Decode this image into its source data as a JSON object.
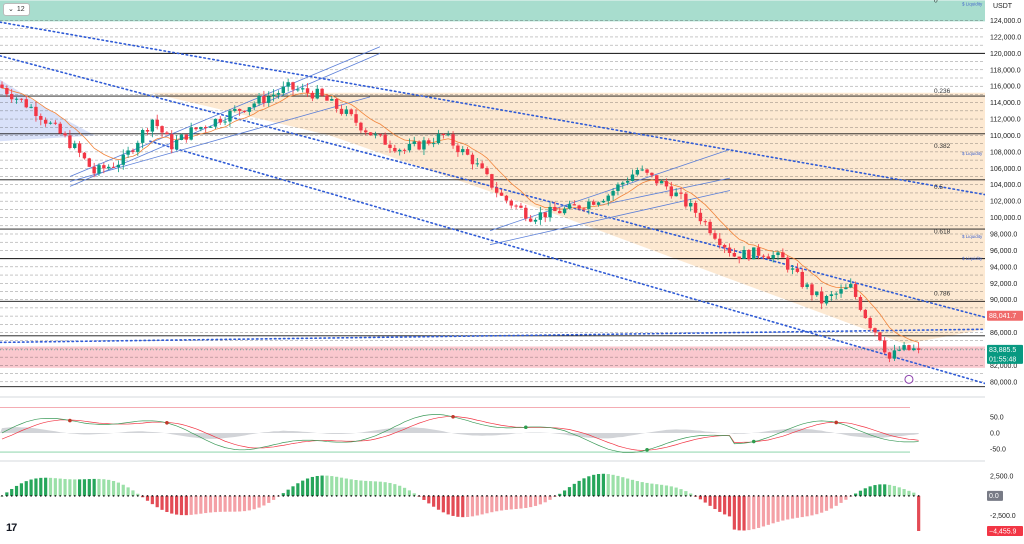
{
  "toolbar": {
    "interval_label": "12",
    "chevron_icon": "chevron-down-icon"
  },
  "axis_currency": "USDT",
  "price_axis": {
    "ticks": [
      "124,000.0",
      "122,000.0",
      "120,000.0",
      "118,000.0",
      "116,000.0",
      "114,000.0",
      "112,000.0",
      "110,000.0",
      "108,000.0",
      "106,000.0",
      "104,000.0",
      "102,000.0",
      "100,000.0",
      "98,000.0",
      "96,000.0",
      "94,000.0",
      "92,000.0",
      "90,000.0",
      "88,000.0",
      "86,000.0",
      "84,000.0",
      "82,000.0",
      "80,000.0"
    ],
    "range": [
      79000,
      126500
    ]
  },
  "fib_levels": [
    {
      "label": "0",
      "price": 126000
    },
    {
      "label": "0.236",
      "price": 115000
    },
    {
      "label": "0.382",
      "price": 108300
    },
    {
      "label": "0.5",
      "price": 103300
    },
    {
      "label": "0.618",
      "price": 97900
    },
    {
      "label": "0.786",
      "price": 90300
    }
  ],
  "liquidity_labels": [
    {
      "text": "Liquidity",
      "price": 126000
    },
    {
      "text": "Liquidity",
      "price": 107800
    },
    {
      "text": "Liquidity",
      "price": 97700
    },
    {
      "text": "Liquidity",
      "price": 95000
    }
  ],
  "price_tags": {
    "level_tag": {
      "text": "88,041.7",
      "price": 88041.7,
      "color": "#f06a6a"
    },
    "last_price": {
      "text": "83,885.5",
      "price": 83885.5,
      "color": "#089981"
    },
    "countdown": {
      "text": "01:55:48"
    }
  },
  "oscillator_axis": {
    "ticks": [
      "50.0",
      "0.0",
      "-50.0"
    ],
    "range": [
      -85,
      110
    ]
  },
  "histogram_axis": {
    "ticks": [
      "2,500.0",
      "-2,500.0"
    ],
    "zero_tag": "0.0",
    "last_tag": "−4,455.9",
    "range": [
      -5600,
      4300
    ],
    "last_value": -4455.9
  },
  "colors": {
    "up": "#089981",
    "down": "#f23645",
    "zone": "#fde9d2",
    "red_zone": "#f8b6bd",
    "green_band": "#6ec6ae",
    "channel": "#5b7fd8",
    "dotted": "#2f5bd6"
  },
  "chart_data": {
    "type": "candlestick",
    "title": "",
    "xlabel": "",
    "ylabel": "USDT",
    "ylim": [
      79000,
      126500
    ],
    "candles": [],
    "oscillator": {
      "type": "line",
      "ylim": [
        -85,
        110
      ],
      "series": [
        {
          "values": []
        },
        {
          "values": []
        }
      ]
    },
    "histogram": {
      "type": "bar",
      "ylim": [
        -5600,
        4300
      ],
      "values": []
    }
  }
}
